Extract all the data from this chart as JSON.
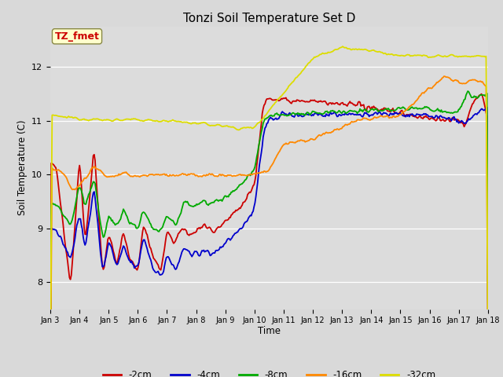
{
  "title": "Tonzi Soil Temperature Set D",
  "ylabel": "Soil Temperature (C)",
  "xlabel": "Time",
  "annotation": "TZ_fmet",
  "ylim": [
    7.5,
    12.75
  ],
  "figsize": [
    6.4,
    4.8
  ],
  "dpi": 100,
  "series_colors": {
    "-2cm": "#cc0000",
    "-4cm": "#0000cc",
    "-8cm": "#00aa00",
    "-16cm": "#ff8800",
    "-32cm": "#dddd00"
  },
  "x_ticks": [
    "Jan 3",
    "Jan 4",
    "Jan 5",
    "Jan 6",
    "Jan 7",
    "Jan 8",
    "Jan 9",
    "Jan 10",
    "Jan 11",
    "Jan 12",
    "Jan 13",
    "Jan 14",
    "Jan 15",
    "Jan 16",
    "Jan 17",
    "Jan 18"
  ]
}
